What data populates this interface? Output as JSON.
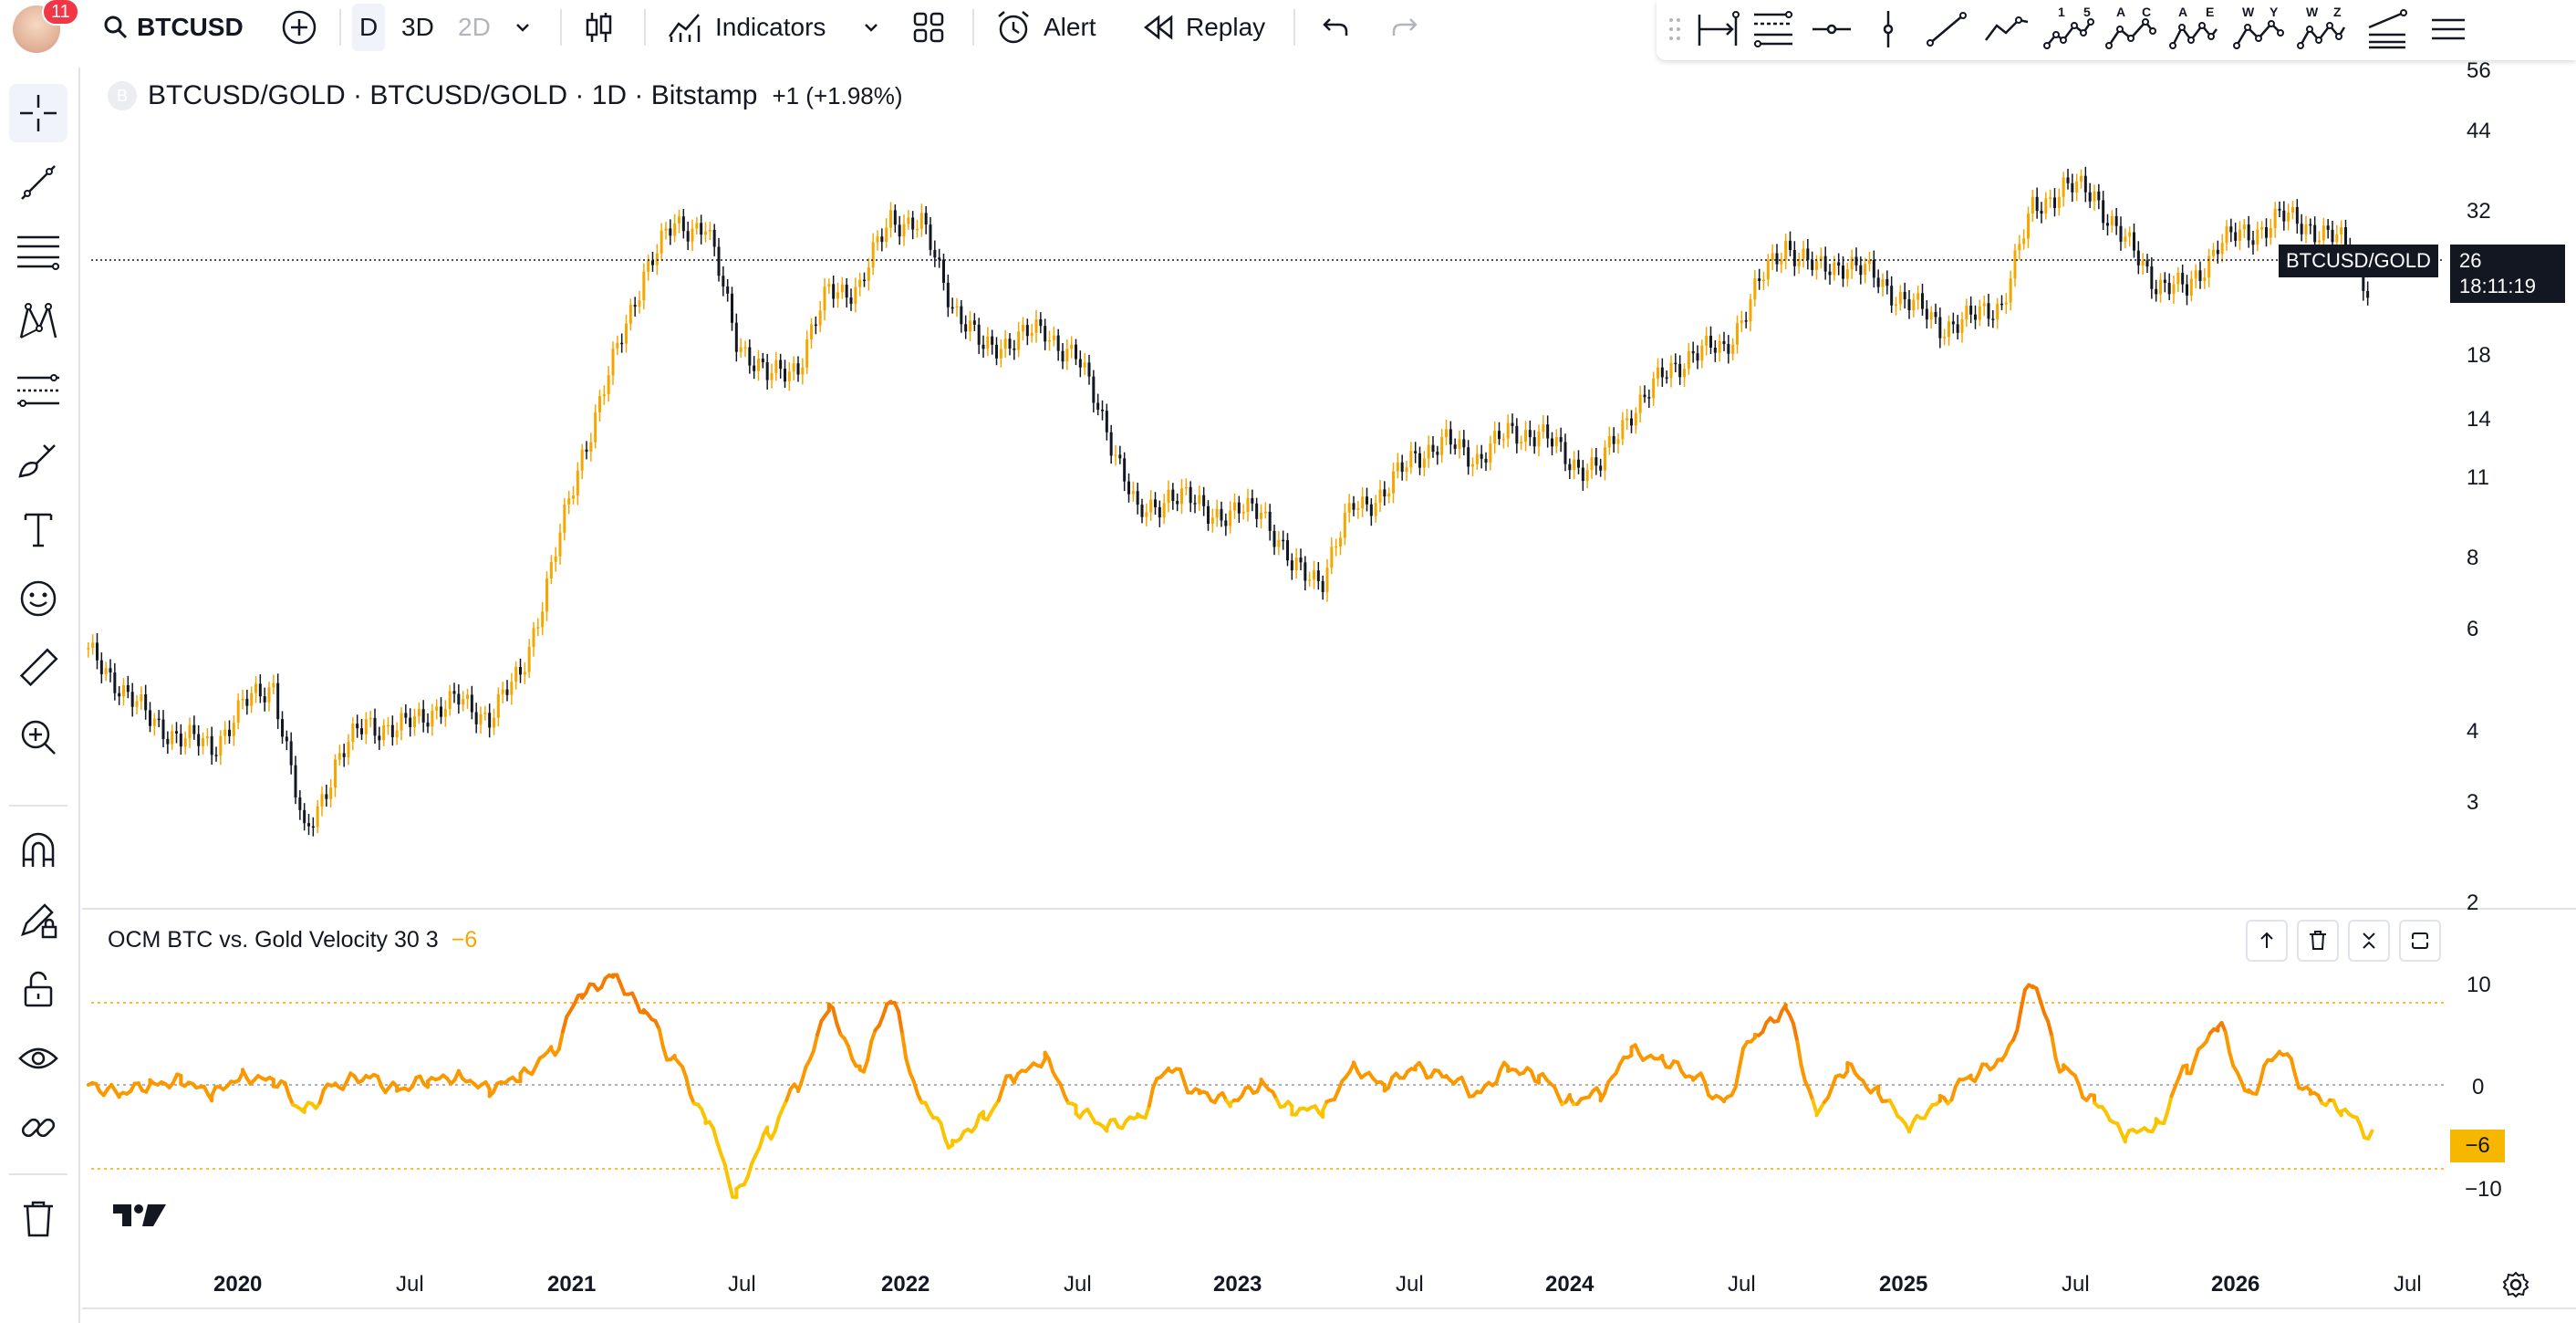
{
  "header": {
    "notifications": "11",
    "symbol": "BTCUSD",
    "intervals": [
      "D",
      "3D",
      "2D"
    ],
    "indicators_label": "Indicators",
    "alert_label": "Alert",
    "replay_label": "Replay"
  },
  "drawing_tools": {
    "pattern_labels": [
      {
        "top": "1",
        "top2": "5"
      },
      {
        "top": "A",
        "top2": "C"
      },
      {
        "top": "A",
        "top2": "E"
      },
      {
        "top": "W",
        "top2": "Y"
      },
      {
        "top": "W",
        "top2": "Z"
      }
    ]
  },
  "chart": {
    "title": "BTCUSD/GOLD · BTCUSD/GOLD · 1D · Bitstamp",
    "change": "+1 (+1.98%)",
    "symbol_logo": "B",
    "last_label": "BTCUSD/GOLD",
    "last_value": "26",
    "countdown": "18:11:19",
    "indicator_name": "OCM BTC vs. Gold Velocity 30 3",
    "indicator_value": "−6",
    "indicator_last": "−6",
    "up_color": "#f7a600",
    "down_color": "#131722"
  },
  "chart_data": [
    {
      "type": "candlestick",
      "title": "BTCUSD/GOLD · BTCUSD/GOLD · 1D · Bitstamp",
      "scale": "log",
      "y_ticks": [
        "56",
        "44",
        "32",
        "26",
        "18",
        "14",
        "11",
        "8",
        "6",
        "4",
        "3",
        "2"
      ],
      "x_ticks": [
        "2020",
        "Jul",
        "2021",
        "Jul",
        "2022",
        "Jul",
        "2023",
        "Jul",
        "2024",
        "Jul",
        "2025",
        "Jul",
        "2026",
        "Jul"
      ],
      "series": [
        {
          "name": "BTCUSD/GOLD",
          "points": [
            [
              "2019-08",
              7.0
            ],
            [
              "2019-09",
              6.3
            ],
            [
              "2019-10",
              5.5
            ],
            [
              "2019-11",
              5.2
            ],
            [
              "2019-12",
              5.0
            ],
            [
              "2020-01",
              5.8
            ],
            [
              "2020-02",
              6.3
            ],
            [
              "2020-03",
              3.6
            ],
            [
              "2020-04",
              4.7
            ],
            [
              "2020-05",
              5.5
            ],
            [
              "2020-06",
              5.3
            ],
            [
              "2020-07",
              5.7
            ],
            [
              "2020-08",
              5.9
            ],
            [
              "2020-09",
              5.6
            ],
            [
              "2020-10",
              6.5
            ],
            [
              "2020-11",
              9.5
            ],
            [
              "2020-12",
              14.5
            ],
            [
              "2021-01",
              20.0
            ],
            [
              "2021-02",
              28.0
            ],
            [
              "2021-03",
              33.0
            ],
            [
              "2021-04",
              33.0
            ],
            [
              "2021-05",
              22.0
            ],
            [
              "2021-06",
              19.0
            ],
            [
              "2021-07",
              20.0
            ],
            [
              "2021-08",
              26.0
            ],
            [
              "2021-09",
              26.5
            ],
            [
              "2021-10",
              34.0
            ],
            [
              "2021-11",
              33.0
            ],
            [
              "2021-12",
              25.0
            ],
            [
              "2022-01",
              21.0
            ],
            [
              "2022-02",
              22.0
            ],
            [
              "2022-03",
              22.5
            ],
            [
              "2022-04",
              20.5
            ],
            [
              "2022-05",
              16.0
            ],
            [
              "2022-06",
              11.5
            ],
            [
              "2022-07",
              12.5
            ],
            [
              "2022-08",
              12.0
            ],
            [
              "2022-09",
              11.5
            ],
            [
              "2022-10",
              12.0
            ],
            [
              "2022-11",
              9.5
            ],
            [
              "2022-12",
              9.3
            ],
            [
              "2023-01",
              12.0
            ],
            [
              "2023-02",
              12.5
            ],
            [
              "2023-03",
              14.5
            ],
            [
              "2023-04",
              15.0
            ],
            [
              "2023-05",
              14.3
            ],
            [
              "2023-06",
              15.5
            ],
            [
              "2023-07",
              15.7
            ],
            [
              "2023-08",
              14.0
            ],
            [
              "2023-09",
              13.8
            ],
            [
              "2023-10",
              17.0
            ],
            [
              "2023-11",
              19.0
            ],
            [
              "2023-12",
              21.0
            ],
            [
              "2024-01",
              21.0
            ],
            [
              "2024-02",
              26.0
            ],
            [
              "2024-03",
              31.0
            ],
            [
              "2024-04",
              28.0
            ],
            [
              "2024-05",
              29.0
            ],
            [
              "2024-06",
              27.0
            ],
            [
              "2024-07",
              25.0
            ],
            [
              "2024-08",
              23.0
            ],
            [
              "2024-09",
              23.5
            ],
            [
              "2024-10",
              25.0
            ],
            [
              "2024-11",
              35.0
            ],
            [
              "2024-12",
              38.0
            ],
            [
              "2025-01",
              37.0
            ],
            [
              "2025-02",
              31.0
            ],
            [
              "2025-03",
              27.0
            ],
            [
              "2025-04",
              26.0
            ],
            [
              "2025-05",
              31.0
            ],
            [
              "2025-06",
              32.0
            ],
            [
              "2025-07",
              34.0
            ],
            [
              "2025-08",
              33.0
            ],
            [
              "2025-09",
              31.0
            ],
            [
              "2025-10",
              26.0
            ]
          ]
        }
      ]
    },
    {
      "type": "line",
      "title": "OCM BTC vs. Gold Velocity 30 3",
      "y_ticks": [
        "10",
        "0",
        "−10"
      ],
      "reference_lines": [
        8,
        0,
        -8
      ],
      "series": [
        {
          "name": "OCM BTC vs. Gold Velocity 30 3",
          "points": [
            [
              "2019-08",
              0
            ],
            [
              "2019-09",
              -1
            ],
            [
              "2019-10",
              0
            ],
            [
              "2019-11",
              0.5
            ],
            [
              "2019-12",
              -1
            ],
            [
              "2020-01",
              1
            ],
            [
              "2020-02",
              0.5
            ],
            [
              "2020-03",
              -3
            ],
            [
              "2020-04",
              0
            ],
            [
              "2020-05",
              1
            ],
            [
              "2020-06",
              -0.5
            ],
            [
              "2020-07",
              0.5
            ],
            [
              "2020-08",
              1
            ],
            [
              "2020-09",
              -0.5
            ],
            [
              "2020-10",
              1
            ],
            [
              "2020-11",
              4
            ],
            [
              "2020-12",
              11
            ],
            [
              "2021-01",
              13
            ],
            [
              "2021-02",
              9
            ],
            [
              "2021-03",
              3
            ],
            [
              "2021-04",
              -4
            ],
            [
              "2021-05",
              -13
            ],
            [
              "2021-06",
              -6
            ],
            [
              "2021-07",
              0
            ],
            [
              "2021-08",
              9
            ],
            [
              "2021-09",
              2
            ],
            [
              "2021-10",
              10
            ],
            [
              "2021-11",
              -2
            ],
            [
              "2021-12",
              -7
            ],
            [
              "2022-01",
              -4
            ],
            [
              "2022-02",
              1
            ],
            [
              "2022-03",
              3
            ],
            [
              "2022-04",
              -3
            ],
            [
              "2022-05",
              -5
            ],
            [
              "2022-06",
              -4
            ],
            [
              "2022-07",
              2
            ],
            [
              "2022-08",
              -1
            ],
            [
              "2022-09",
              -2
            ],
            [
              "2022-10",
              0
            ],
            [
              "2022-11",
              -3
            ],
            [
              "2022-12",
              -3
            ],
            [
              "2023-01",
              2
            ],
            [
              "2023-02",
              0
            ],
            [
              "2023-03",
              2
            ],
            [
              "2023-04",
              1
            ],
            [
              "2023-05",
              -1
            ],
            [
              "2023-06",
              2
            ],
            [
              "2023-07",
              1
            ],
            [
              "2023-08",
              -2
            ],
            [
              "2023-09",
              -1
            ],
            [
              "2023-10",
              4
            ],
            [
              "2023-11",
              3
            ],
            [
              "2023-12",
              1
            ],
            [
              "2024-01",
              -2
            ],
            [
              "2024-02",
              6
            ],
            [
              "2024-03",
              9
            ],
            [
              "2024-04",
              -3
            ],
            [
              "2024-05",
              2
            ],
            [
              "2024-06",
              -1
            ],
            [
              "2024-07",
              -5
            ],
            [
              "2024-08",
              -2
            ],
            [
              "2024-09",
              1
            ],
            [
              "2024-10",
              3
            ],
            [
              "2024-11",
              12
            ],
            [
              "2024-12",
              2
            ],
            [
              "2025-01",
              -2
            ],
            [
              "2025-02",
              -6
            ],
            [
              "2025-03",
              -5
            ],
            [
              "2025-04",
              2
            ],
            [
              "2025-05",
              7
            ],
            [
              "2025-06",
              -1
            ],
            [
              "2025-07",
              4
            ],
            [
              "2025-08",
              -1
            ],
            [
              "2025-09",
              -3
            ],
            [
              "2025-10",
              -6
            ]
          ]
        }
      ]
    }
  ]
}
